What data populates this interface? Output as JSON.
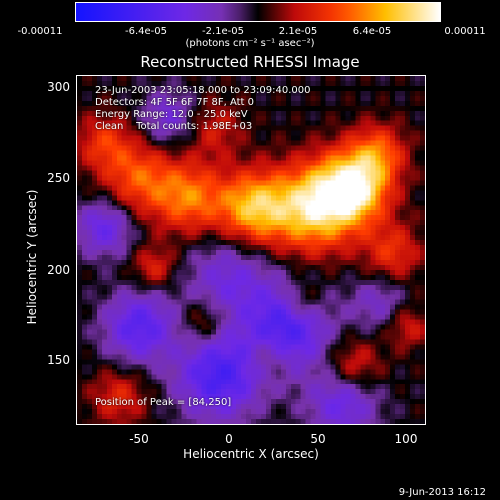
{
  "colorbar": {
    "tick_labels": [
      "-0.00011",
      "-6.4e-05",
      "-2.1e-05",
      "2.1e-05",
      "6.4e-05",
      "0.00011"
    ],
    "units": "(photons cm⁻² s⁻¹ asec⁻²)",
    "range": [
      -0.00011,
      0.00011
    ]
  },
  "chart_data": {
    "type": "heatmap",
    "title": "Reconstructed RHESSI Image",
    "xlabel": "Heliocentric X (arcsec)",
    "ylabel": "Heliocentric Y (arcsec)",
    "xlim": [
      -83,
      112
    ],
    "ylim": [
      110,
      305
    ],
    "xticks": [
      "-50",
      "0",
      "50",
      "100"
    ],
    "yticks": [
      "150",
      "200",
      "250",
      "300"
    ],
    "peak_position": [
      84,
      250
    ],
    "colormap": "rainbow-blue-purple-red-yellow-white"
  },
  "annotations": {
    "time": "23-Jun-2003 23:05:18.000 to 23:09:40.000",
    "detectors": "Detectors: 4F 5F 6F 7F 8F, Att 0",
    "energy": "Energy Range: 12.0 - 25.0 keV",
    "clean": "Clean    Total counts: 1.98E+03",
    "peak": "Position of Peak = [84,250]"
  },
  "footer": {
    "date": "9-Jun-2013 16:12"
  }
}
